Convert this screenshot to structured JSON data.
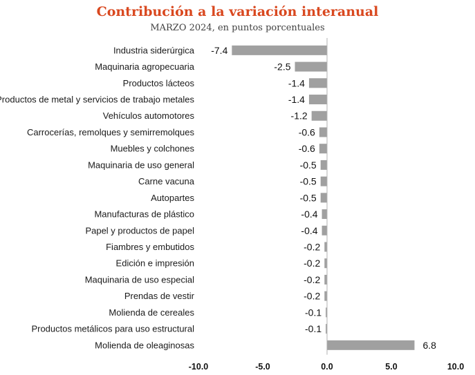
{
  "chart_data": {
    "type": "bar",
    "orientation": "horizontal",
    "title": "Contribución a la variación interanual",
    "subtitle": "MARZO 2024, en puntos porcentuales",
    "categories": [
      "Industria siderúrgica",
      "Maquinaria agropecuaria",
      "Productos lácteos",
      "Productos de metal y servicios de trabajo metales",
      "Vehículos automotores",
      "Carrocerías, remolques y semirremolques",
      "Muebles y colchones",
      "Maquinaria de uso general",
      "Carne vacuna",
      "Autopartes",
      "Manufacturas de plástico",
      "Papel y productos de papel",
      "Fiambres y embutidos",
      "Edición e impresión",
      "Maquinaria de uso especial",
      "Prendas de vestir",
      "Molienda de cereales",
      "Productos metálicos para uso estructural",
      "Molienda de oleaginosas"
    ],
    "values": [
      -7.4,
      -2.5,
      -1.4,
      -1.4,
      -1.2,
      -0.6,
      -0.6,
      -0.5,
      -0.5,
      -0.5,
      -0.4,
      -0.4,
      -0.2,
      -0.2,
      -0.2,
      -0.2,
      -0.1,
      -0.1,
      6.8
    ],
    "value_labels": [
      "-7.4",
      "-2.5",
      "-1.4",
      "-1.4",
      "-1.2",
      "-0.6",
      "-0.6",
      "-0.5",
      "-0.5",
      "-0.5",
      "-0.4",
      "-0.4",
      "-0.2",
      "-0.2",
      "-0.2",
      "-0.2",
      "-0.1",
      "-0.1",
      "6.8"
    ],
    "xlim": [
      -10,
      10
    ],
    "xticks": [
      -10,
      -5,
      0,
      5,
      10
    ],
    "xtick_labels": [
      "-10.0",
      "-5.0",
      "0.0",
      "5.0",
      "10.0"
    ],
    "xlabel": "",
    "ylabel": "",
    "grid": false,
    "bar_color": "#a0a0a0",
    "axis_color": "#b0b0b0"
  }
}
